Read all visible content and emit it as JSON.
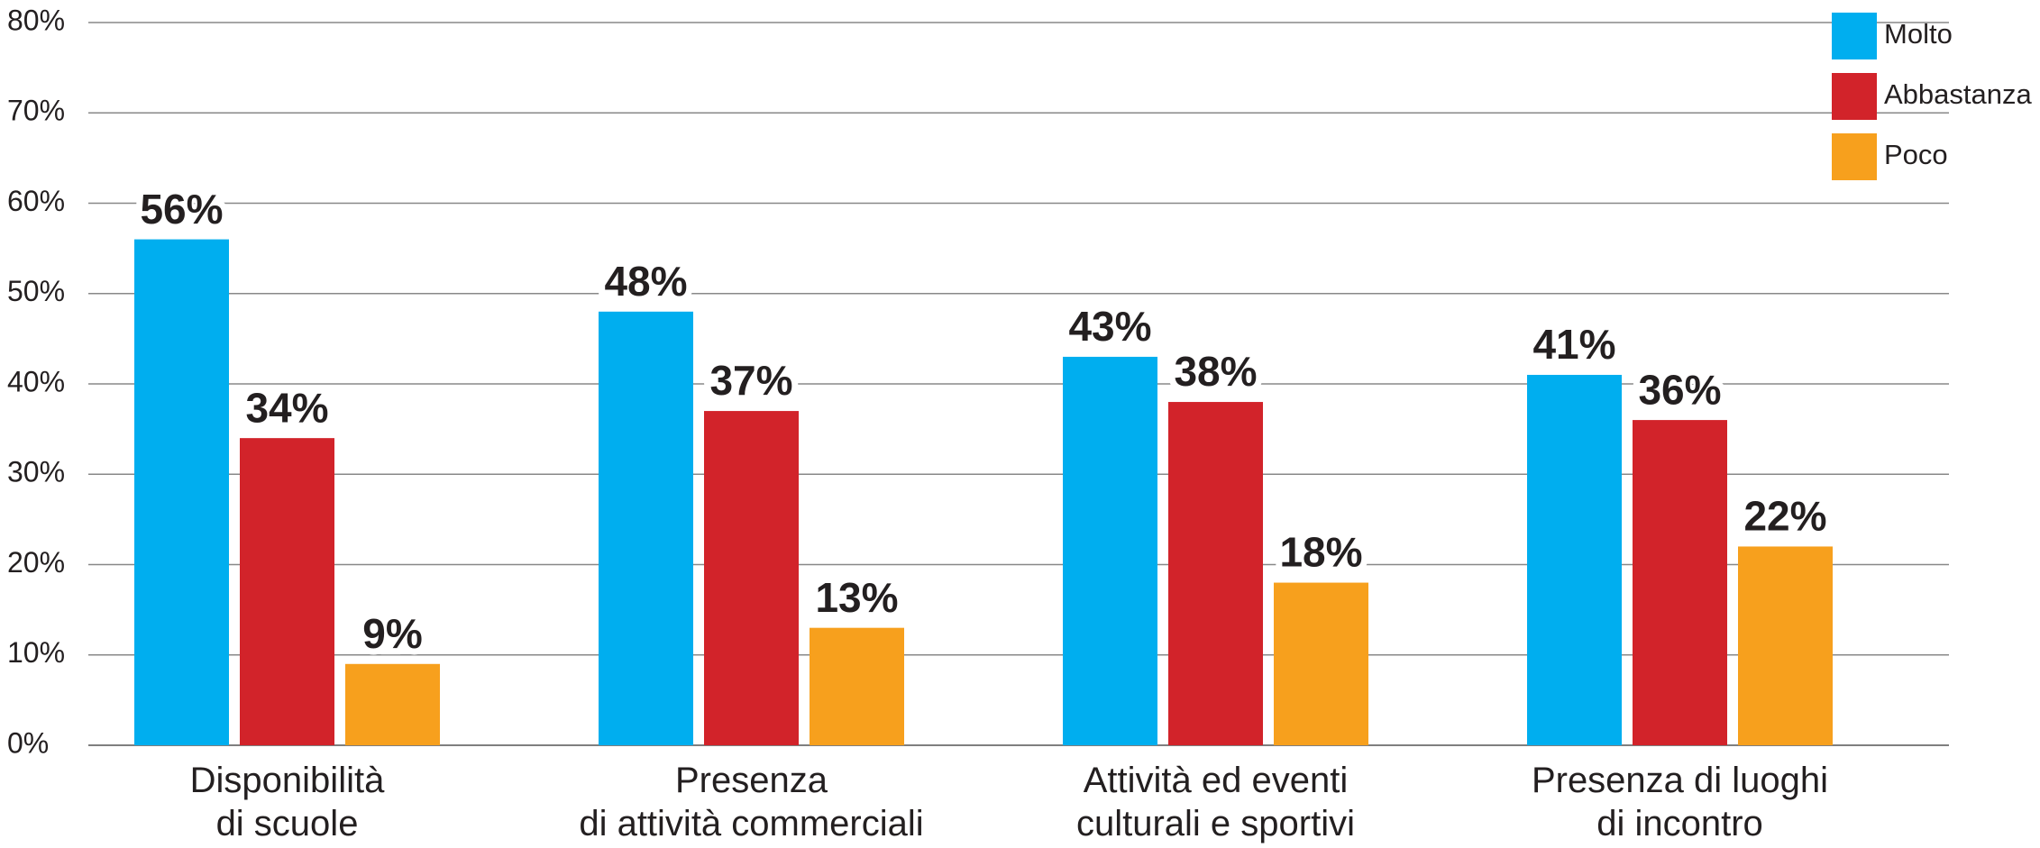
{
  "chart_data": {
    "type": "bar",
    "categories": [
      "Disponibilità\ndi scuole",
      "Presenza\ndi attività commerciali",
      "Attività ed eventi\nculturali e sportivi",
      "Presenza di luoghi\ndi incontro"
    ],
    "series": [
      {
        "name": "Molto",
        "color": "#00aeef",
        "values": [
          56,
          48,
          43,
          41
        ],
        "value_labels": [
          "56%",
          "48%",
          "43%",
          "41%"
        ]
      },
      {
        "name": "Abbastanza",
        "color": "#d2232a",
        "values": [
          34,
          37,
          38,
          36
        ],
        "value_labels": [
          "34%",
          "37%",
          "38%",
          "36%"
        ]
      },
      {
        "name": "Poco",
        "color": "#f7a01d",
        "values": [
          9,
          13,
          18,
          22
        ],
        "value_labels": [
          "9%",
          "13%",
          "18%",
          "22%"
        ]
      }
    ],
    "ylim": [
      0,
      80
    ],
    "yticks": [
      {
        "value": 0,
        "label": "0%"
      },
      {
        "value": 10,
        "label": "10%"
      },
      {
        "value": 20,
        "label": "20%"
      },
      {
        "value": 30,
        "label": "30%"
      },
      {
        "value": 40,
        "label": "40%"
      },
      {
        "value": 50,
        "label": "50%"
      },
      {
        "value": 60,
        "label": "60%"
      },
      {
        "value": 70,
        "label": "70%"
      },
      {
        "value": 80,
        "label": "80%"
      }
    ],
    "grid": true,
    "legend": "top-right"
  }
}
